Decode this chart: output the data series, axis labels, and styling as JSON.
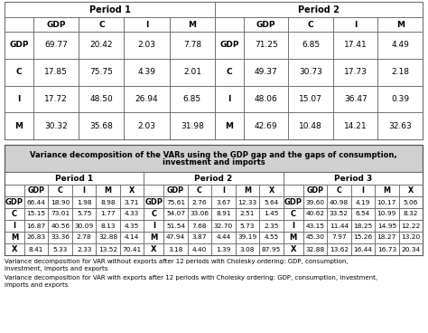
{
  "table1_p1_title": "Period 1",
  "table1_p2_title": "Period 2",
  "table1_col_headers": [
    "GDP",
    "C",
    "I",
    "M"
  ],
  "table1_p1_rows": [
    [
      "GDP",
      "69.77",
      "20.42",
      "2.03",
      "7.78"
    ],
    [
      "C",
      "17.85",
      "75.75",
      "4.39",
      "2.01"
    ],
    [
      "I",
      "17.72",
      "48.50",
      "26.94",
      "6.85"
    ],
    [
      "M",
      "30.32",
      "35.68",
      "2.03",
      "31.98"
    ]
  ],
  "table1_p2_rows": [
    [
      "GDP",
      "71.25",
      "6.85",
      "17.41",
      "4.49"
    ],
    [
      "C",
      "49.37",
      "30.73",
      "17.73",
      "2.18"
    ],
    [
      "I",
      "48.06",
      "15.07",
      "36.47",
      "0.39"
    ],
    [
      "M",
      "42.69",
      "10.48",
      "14.21",
      "32.63"
    ]
  ],
  "table2_title_line1": "Variance decomposition of the VARs using the GDP gap and the gaps of consumption,",
  "table2_title_line2": "investment and imports",
  "table2_col_headers": [
    "GDP",
    "C",
    "I",
    "M",
    "X"
  ],
  "table2_p1_rows": [
    [
      "GDP",
      "66.44",
      "18.90",
      "1.98",
      "8.98",
      "3.71"
    ],
    [
      "C",
      "15.15",
      "73.01",
      "5.75",
      "1.77",
      "4.33"
    ],
    [
      "I",
      "16.87",
      "40.56",
      "30.09",
      "8.13",
      "4.35"
    ],
    [
      "M",
      "26.83",
      "33.36",
      "2.78",
      "32.88",
      "4.14"
    ],
    [
      "X",
      "8.41",
      "5.33",
      "2.33",
      "13.52",
      "70.41"
    ]
  ],
  "table2_p2_rows": [
    [
      "GDP",
      "75.61",
      "2.76",
      "3.67",
      "12.33",
      "5.64"
    ],
    [
      "C",
      "54.07",
      "33.06",
      "8.91",
      "2.51",
      "1.45"
    ],
    [
      "I",
      "51.54",
      "7.68",
      "32.70",
      "5.73",
      "2.35"
    ],
    [
      "M",
      "47.94",
      "3.87",
      "4.44",
      "39.19",
      "4.55"
    ],
    [
      "X",
      "3.18",
      "4.40",
      "1.39",
      "3.08",
      "87.95"
    ]
  ],
  "table2_p3_rows": [
    [
      "GDP",
      "39.60",
      "40.98",
      "4.19",
      "10.17",
      "5.06"
    ],
    [
      "C",
      "40.62",
      "33.52",
      "6.54",
      "10.99",
      "8.32"
    ],
    [
      "I",
      "43.15",
      "11.44",
      "18.25",
      "14.95",
      "12.22"
    ],
    [
      "M",
      "45.30",
      "7.97",
      "15.26",
      "18.27",
      "13.20"
    ],
    [
      "X",
      "32.88",
      "13.62",
      "16.44",
      "16.73",
      "20.34"
    ]
  ],
  "footnote1_line1": "Variance decomposition for VAR without exports after 12 periods with Cholesky ordering: GDP, consumption,",
  "footnote1_line2": "investment, imports and exports",
  "footnote2_line1": "Variance decomposition for VAR with exports after 12 periods with Cholesky ordering: GDP, consumption, investment,",
  "footnote2_line2": "imports and exports",
  "gray_bg": "#d0d0d0",
  "white_bg": "#ffffff",
  "border_color": "#555555",
  "text_color": "#000000"
}
